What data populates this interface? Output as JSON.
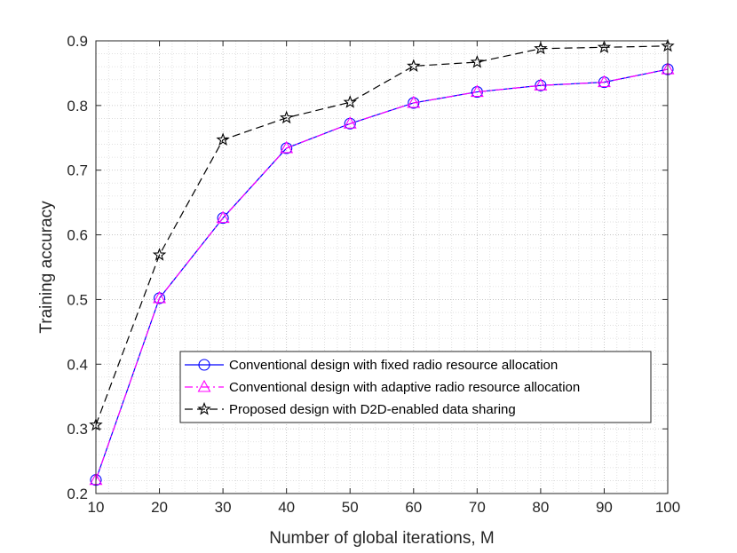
{
  "chart_data": {
    "type": "line",
    "title": "",
    "xlabel": "Number of global iterations, M",
    "ylabel": "Training accuracy",
    "xlim": [
      10,
      100
    ],
    "ylim": [
      0.2,
      0.9
    ],
    "xticks": [
      10,
      20,
      30,
      40,
      50,
      60,
      70,
      80,
      90,
      100
    ],
    "yticks": [
      0.2,
      0.3,
      0.4,
      0.5,
      0.6,
      0.7,
      0.8,
      0.9
    ],
    "xtick_labels": [
      "10",
      "20",
      "30",
      "40",
      "50",
      "60",
      "70",
      "80",
      "90",
      "100"
    ],
    "ytick_labels": [
      "0.2",
      "0.3",
      "0.4",
      "0.5",
      "0.6",
      "0.7",
      "0.8",
      "0.9"
    ],
    "grid": true,
    "minor_grid": true,
    "legend_position": "lower-right",
    "x": [
      10,
      20,
      30,
      40,
      50,
      60,
      70,
      80,
      90,
      100
    ],
    "series": [
      {
        "name": "Conventional design with fixed radio resource allocation",
        "values": [
          0.221,
          0.502,
          0.626,
          0.734,
          0.772,
          0.804,
          0.821,
          0.831,
          0.836,
          0.856
        ],
        "color": "#0000ff",
        "line_style": "solid",
        "marker": "circle"
      },
      {
        "name": "Conventional design with adaptive radio resource allocation",
        "values": [
          0.221,
          0.502,
          0.626,
          0.734,
          0.772,
          0.804,
          0.821,
          0.831,
          0.836,
          0.856
        ],
        "color": "#ff00ff",
        "line_style": "dash-dot",
        "marker": "triangle"
      },
      {
        "name": "Proposed design with D2D-enabled data sharing",
        "values": [
          0.306,
          0.569,
          0.747,
          0.781,
          0.805,
          0.861,
          0.867,
          0.888,
          0.89,
          0.892
        ],
        "color": "#000000",
        "line_style": "dashed",
        "marker": "star"
      }
    ]
  }
}
